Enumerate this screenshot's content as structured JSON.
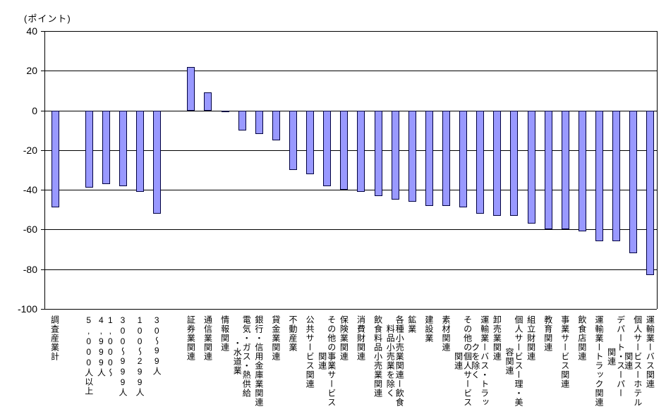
{
  "chart_data": {
    "type": "bar",
    "title": "",
    "unit_label": "(ポイント)",
    "xlabel": "",
    "ylabel": "",
    "ylim": [
      -100,
      40
    ],
    "ytick_interval": 20,
    "yticks": [
      40,
      20,
      0,
      -20,
      -40,
      -60,
      -80,
      -100
    ],
    "grid": true,
    "legend": "none",
    "background_color": "#ffffff",
    "gridline_color": "#000000",
    "bar_color": "#9999ff",
    "bar_border_color": "#000040",
    "group_sizes": [
      1,
      5,
      28
    ],
    "categories": [
      "調査産業計",
      "5,000人以上",
      "1,000〜4,999人",
      "300〜999人",
      "100〜299人",
      "30〜99人",
      "証券業関連",
      "通信業関連",
      "情報関連",
      "電気・ガス・熱供給・水道業",
      "銀行・信用金庫業関連",
      "貸金業関連",
      "不動産業",
      "公共サービス関連",
      "その他の事業サービス関連",
      "保険業関連",
      "消費財関連",
      "飲食料品小売業関連",
      "各種小売業関連ー飲食料品小売業を除く",
      "鉱業",
      "建設業",
      "素材関連",
      "その他の個人サービス関連",
      "運輸業ーバス・トラックを除く",
      "卸売業関連",
      "個人サービスー理・美容関連",
      "組立財関連",
      "教育関連",
      "事業サービス関連",
      "飲食店関連",
      "運輸業ートラック関連",
      "デパート・スーパー関連",
      "個人サービスーホテル関連",
      "運輸業ーバス関連"
    ],
    "values": [
      -49,
      -39,
      -37,
      -38,
      -41,
      -52,
      22,
      9,
      -1,
      -10,
      -12,
      -15,
      -30,
      -32,
      -38,
      -40,
      -41,
      -43,
      -45,
      -46,
      -48,
      -48,
      -49,
      -52,
      -53,
      -53,
      -57,
      -60,
      -60,
      -61,
      -66,
      -66,
      -72,
      -83
    ],
    "label_lines": {
      "2": [
        "1,000〜",
        "4,999人"
      ],
      "9": [
        "電気・ガス・熱供給",
        "・水道業"
      ],
      "14": [
        "その他の事業サービス",
        "関連"
      ],
      "18": [
        "各種小売業関連ー飲食",
        "料品小売業を除く"
      ],
      "22": [
        "その他の個人サービス",
        "関連"
      ],
      "23": [
        "運輸業ーバス・トラッ",
        "クを除く"
      ],
      "25": [
        "個人サービスー理・美",
        "容関連"
      ],
      "31": [
        "デパート・スーパー",
        "関連"
      ],
      "32": [
        "個人サービスーホテル",
        "関連"
      ]
    }
  }
}
